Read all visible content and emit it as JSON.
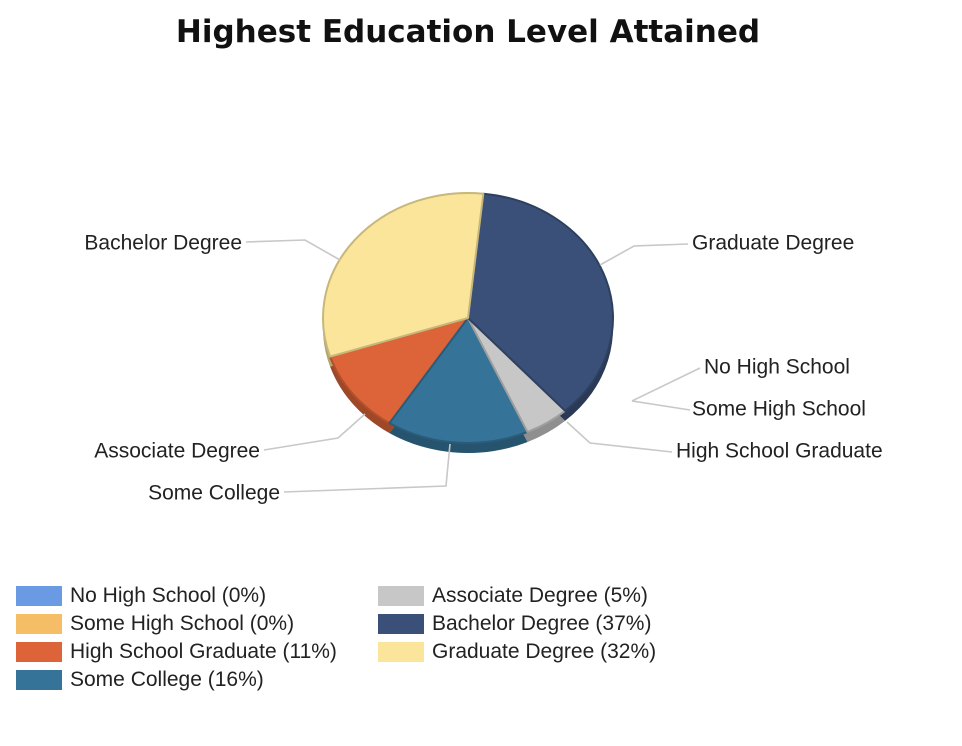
{
  "chart_data": {
    "type": "pie",
    "title": "Highest Education Level Attained",
    "slices": [
      {
        "label": "No High School",
        "legend": "No High School (0%)",
        "value": 0,
        "color": "#6a9ae4"
      },
      {
        "label": "Some High School",
        "legend": "Some High School (0%)",
        "value": 0,
        "color": "#f4bd66"
      },
      {
        "label": "High School Graduate",
        "legend": "High School Graduate (11%)",
        "value": 11,
        "color": "#dc6438"
      },
      {
        "label": "Some College",
        "legend": "Some College (16%)",
        "value": 16,
        "color": "#357399"
      },
      {
        "label": "Associate Degree",
        "legend": "Associate Degree (5%)",
        "value": 5,
        "color": "#c7c7c7"
      },
      {
        "label": "Bachelor Degree",
        "legend": "Bachelor Degree (37%)",
        "value": 37,
        "color": "#3a5078"
      },
      {
        "label": "Graduate Degree",
        "legend": "Graduate Degree (32%)",
        "value": 32,
        "color": "#fae59a"
      }
    ],
    "legend_position": "bottom-left"
  }
}
